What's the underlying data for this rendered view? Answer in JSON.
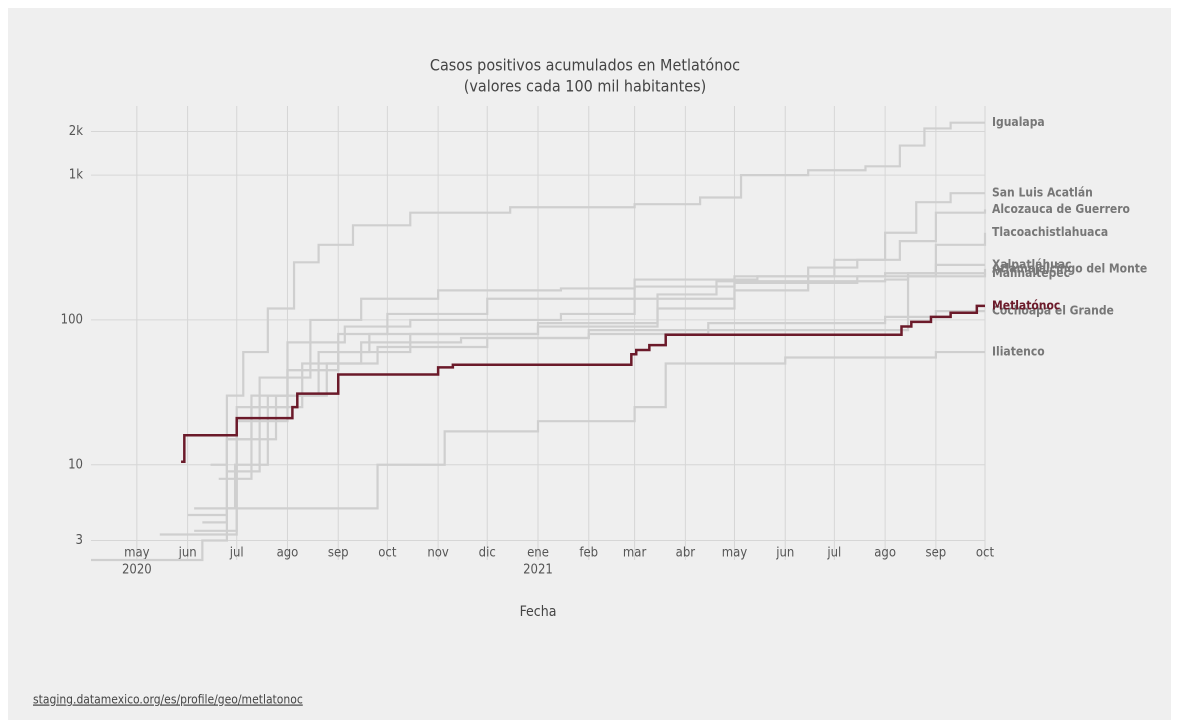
{
  "chart_data": {
    "type": "line",
    "curve": "step",
    "title": "Casos positivos acumulados en Metlatónoc",
    "subtitle": "(valores cada 100 mil habitantes)",
    "x_label": "Fecha",
    "source": "staging.datamexico.org/es/profile/geo/metlatonoc",
    "log_y": true,
    "grid": true,
    "xlim": [
      "2020-04-03",
      "2021-10-01"
    ],
    "ylim": [
      2.2,
      3000
    ],
    "yticks": [
      3,
      10,
      100,
      {
        "value": 1000,
        "label": "1k"
      },
      {
        "value": 2000,
        "label": "2k"
      }
    ],
    "xticks": [
      {
        "value": "2020-05-01",
        "label": "may",
        "sublabel": "2020"
      },
      {
        "value": "2020-06-01",
        "label": "jun"
      },
      {
        "value": "2020-07-01",
        "label": "jul"
      },
      {
        "value": "2020-08-01",
        "label": "ago"
      },
      {
        "value": "2020-09-01",
        "label": "sep"
      },
      {
        "value": "2020-10-01",
        "label": "oct"
      },
      {
        "value": "2020-11-01",
        "label": "nov"
      },
      {
        "value": "2020-12-01",
        "label": "dic"
      },
      {
        "value": "2021-01-01",
        "label": "ene",
        "sublabel": "2021"
      },
      {
        "value": "2021-02-01",
        "label": "feb"
      },
      {
        "value": "2021-03-01",
        "label": "mar"
      },
      {
        "value": "2021-04-01",
        "label": "abr"
      },
      {
        "value": "2021-05-01",
        "label": "may"
      },
      {
        "value": "2021-06-01",
        "label": "jun"
      },
      {
        "value": "2021-07-01",
        "label": "jul"
      },
      {
        "value": "2021-08-01",
        "label": "ago"
      },
      {
        "value": "2021-09-01",
        "label": "sep"
      },
      {
        "value": "2021-10-01",
        "label": "oct"
      }
    ],
    "series": [
      {
        "name": "Igualapa",
        "color": "#cfcfcf",
        "x": [
          "2020-06-15",
          "2020-06-25",
          "2020-07-05",
          "2020-07-20",
          "2020-08-05",
          "2020-08-20",
          "2020-09-10",
          "2020-10-15",
          "2020-12-15",
          "2021-03-01",
          "2021-04-10",
          "2021-05-05",
          "2021-06-15",
          "2021-07-20",
          "2021-08-10",
          "2021-08-25",
          "2021-09-10",
          "2021-10-01"
        ],
        "values": [
          10,
          30,
          60,
          120,
          250,
          330,
          450,
          550,
          600,
          630,
          700,
          1000,
          1080,
          1150,
          1600,
          2100,
          2300,
          2300
        ]
      },
      {
        "name": "San Luis Acatlán",
        "color": "#cfcfcf",
        "x": [
          "2020-06-10",
          "2020-06-25",
          "2020-07-10",
          "2020-08-01",
          "2020-09-01",
          "2020-10-01",
          "2020-12-01",
          "2021-03-01",
          "2021-05-01",
          "2021-07-01",
          "2021-08-01",
          "2021-08-20",
          "2021-09-10",
          "2021-10-01"
        ],
        "values": [
          4,
          15,
          30,
          45,
          80,
          110,
          140,
          170,
          200,
          260,
          400,
          650,
          750,
          750
        ]
      },
      {
        "name": "Alcozauca de Guerrero",
        "color": "#cfcfcf",
        "x": [
          "2020-06-05",
          "2020-07-01",
          "2020-08-01",
          "2020-09-01",
          "2020-10-15",
          "2021-01-01",
          "2021-03-15",
          "2021-05-01",
          "2021-06-15",
          "2021-07-15",
          "2021-08-10",
          "2021-09-01",
          "2021-10-01"
        ],
        "values": [
          3.5,
          20,
          45,
          60,
          80,
          95,
          120,
          160,
          230,
          260,
          350,
          550,
          580
        ]
      },
      {
        "name": "Tlacoachistlahuaca",
        "color": "#cfcfcf",
        "x": [
          "2020-06-20",
          "2020-07-10",
          "2020-08-10",
          "2020-09-15",
          "2020-11-15",
          "2021-02-01",
          "2021-04-15",
          "2021-08-08",
          "2021-08-15",
          "2021-09-01",
          "2021-10-01"
        ],
        "values": [
          8,
          25,
          50,
          70,
          75,
          80,
          85,
          85,
          200,
          330,
          400
        ]
      },
      {
        "name": "Xalpatláhuac",
        "color": "#cfcfcf",
        "x": [
          "2020-06-25",
          "2020-07-15",
          "2020-08-15",
          "2020-09-15",
          "2020-11-01",
          "2021-01-15",
          "2021-03-01",
          "2021-05-15",
          "2021-08-01",
          "2021-09-01",
          "2021-10-01"
        ],
        "values": [
          9,
          40,
          100,
          140,
          160,
          165,
          190,
          200,
          210,
          240,
          240
        ]
      },
      {
        "name": "Atlamajalcingo del Monte",
        "color": "#cfcfcf",
        "x": [
          "2020-06-01",
          "2020-06-25",
          "2020-07-25",
          "2020-08-20",
          "2020-09-20",
          "2021-01-01",
          "2021-03-15",
          "2021-04-20",
          "2021-08-01",
          "2021-08-15",
          "2021-10-01"
        ],
        "values": [
          4.5,
          15,
          30,
          60,
          80,
          90,
          150,
          185,
          190,
          210,
          225
        ]
      },
      {
        "name": "Malinaltepec",
        "color": "#cfcfcf",
        "x": [
          "2020-05-15",
          "2020-07-01",
          "2020-08-01",
          "2020-09-05",
          "2020-10-15",
          "2021-01-15",
          "2021-03-01",
          "2021-05-01",
          "2021-07-15",
          "2021-10-01"
        ],
        "values": [
          3.3,
          25,
          70,
          90,
          100,
          110,
          140,
          180,
          200,
          210
        ]
      },
      {
        "name": "Cochoapa el Grande",
        "color": "#cfcfcf",
        "x": [
          "2020-06-05",
          "2020-06-30",
          "2020-07-20",
          "2020-08-25",
          "2020-09-25",
          "2020-12-01",
          "2021-02-01",
          "2021-04-15",
          "2021-08-01",
          "2021-09-01",
          "2021-10-01"
        ],
        "values": [
          5,
          10,
          30,
          50,
          65,
          75,
          85,
          95,
          105,
          115,
          115
        ]
      },
      {
        "name": "Iliatenco",
        "color": "#cfcfcf",
        "x": [
          "2020-04-03",
          "2020-06-05",
          "2020-06-10",
          "2020-06-25",
          "2020-09-25",
          "2020-11-01",
          "2020-11-05",
          "2021-01-01",
          "2021-03-01",
          "2021-03-20",
          "2021-06-01",
          "2021-09-01",
          "2021-10-01"
        ],
        "values": [
          2.2,
          2.2,
          3,
          5,
          10,
          10,
          17,
          20,
          25,
          50,
          55,
          60,
          60
        ]
      },
      {
        "name": "Metlatónoc",
        "color": "#6b1a2a",
        "x": [
          "2020-05-28",
          "2020-05-30",
          "2020-07-01",
          "2020-08-04",
          "2020-08-07",
          "2020-08-15",
          "2020-09-01",
          "2020-11-01",
          "2020-11-10",
          "2021-02-24",
          "2021-02-27",
          "2021-03-02",
          "2021-03-10",
          "2021-03-20",
          "2021-08-05",
          "2021-08-11",
          "2021-08-17",
          "2021-08-29",
          "2021-09-10",
          "2021-09-26",
          "2021-10-01"
        ],
        "values": [
          10.5,
          16,
          21,
          25,
          31,
          31,
          42,
          47,
          49,
          49,
          58,
          62,
          67,
          79,
          79,
          90,
          97,
          105,
          112,
          125,
          125
        ]
      }
    ]
  }
}
